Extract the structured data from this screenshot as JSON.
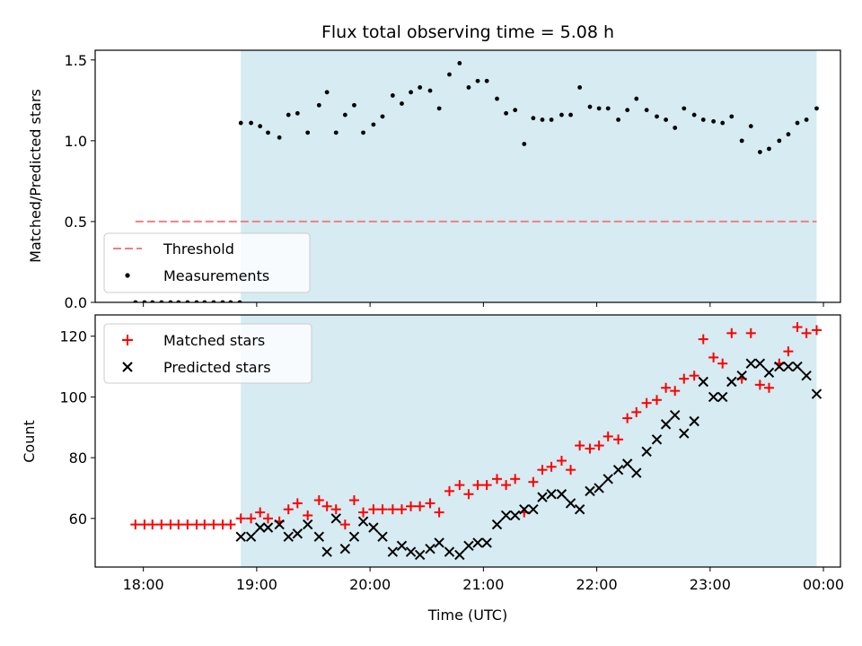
{
  "chart_data": [
    {
      "type": "scatter",
      "title": "Flux total observing time = 5.08 h",
      "xlabel": "",
      "ylabel": "Matched/Predicted stars",
      "ylim": [
        0,
        1.56
      ],
      "yticks": [
        "0.0",
        "0.5",
        "1.0",
        "1.5"
      ],
      "xlim_hours": [
        17.575,
        24.15
      ],
      "shaded_range_hours": [
        18.86,
        23.94
      ],
      "shade_color": "#add8e6",
      "legend_position": "lower-left",
      "threshold": {
        "name": "Threshold",
        "value": 0.5,
        "x_range_hours": [
          17.93,
          23.94
        ],
        "color": "#f08080"
      },
      "series": [
        {
          "name": "Measurements",
          "color": "#000000",
          "x_hours": [
            17.93,
            18.01,
            18.08,
            18.16,
            18.24,
            18.31,
            18.39,
            18.47,
            18.54,
            18.62,
            18.7,
            18.77,
            18.85,
            18.86,
            18.95,
            19.03,
            19.1,
            19.2,
            19.28,
            19.36,
            19.45,
            19.55,
            19.62,
            19.7,
            19.78,
            19.86,
            19.94,
            20.03,
            20.11,
            20.2,
            20.28,
            20.36,
            20.44,
            20.53,
            20.61,
            20.7,
            20.79,
            20.87,
            20.95,
            21.03,
            21.12,
            21.2,
            21.28,
            21.36,
            21.44,
            21.52,
            21.6,
            21.69,
            21.77,
            21.85,
            21.94,
            22.02,
            22.1,
            22.19,
            22.27,
            22.35,
            22.44,
            22.53,
            22.61,
            22.69,
            22.77,
            22.86,
            22.94,
            23.03,
            23.11,
            23.19,
            23.28,
            23.36,
            23.44,
            23.52,
            23.61,
            23.69,
            23.77,
            23.85,
            23.94
          ],
          "y": [
            0,
            0,
            0,
            0,
            0,
            0,
            0,
            0,
            0,
            0,
            0,
            0,
            0,
            1.11,
            1.11,
            1.09,
            1.05,
            1.02,
            1.16,
            1.17,
            1.05,
            1.22,
            1.3,
            1.05,
            1.16,
            1.22,
            1.05,
            1.1,
            1.15,
            1.28,
            1.23,
            1.3,
            1.33,
            1.31,
            1.2,
            1.41,
            1.48,
            1.33,
            1.37,
            1.37,
            1.26,
            1.17,
            1.19,
            0.98,
            1.14,
            1.13,
            1.13,
            1.16,
            1.16,
            1.33,
            1.21,
            1.2,
            1.2,
            1.13,
            1.19,
            1.26,
            1.19,
            1.15,
            1.13,
            1.08,
            1.2,
            1.16,
            1.13,
            1.12,
            1.11,
            1.15,
            1.0,
            1.09,
            0.93,
            0.95,
            1.0,
            1.04,
            1.11,
            1.13,
            1.2
          ]
        }
      ]
    },
    {
      "type": "scatter",
      "title": "",
      "xlabel": "Time (UTC)",
      "ylabel": "Count",
      "ylim": [
        44,
        127
      ],
      "yticks": [
        "60",
        "80",
        "100",
        "120"
      ],
      "xticks": [
        "18:00",
        "19:00",
        "20:00",
        "21:00",
        "22:00",
        "23:00",
        "00:00"
      ],
      "xlim_hours": [
        17.575,
        24.15
      ],
      "shaded_range_hours": [
        18.86,
        23.94
      ],
      "legend_position": "upper-left",
      "series": [
        {
          "name": "Matched stars",
          "color": "#ff0000",
          "marker": "plus",
          "x_hours": [
            17.93,
            18.01,
            18.08,
            18.16,
            18.24,
            18.31,
            18.39,
            18.47,
            18.54,
            18.62,
            18.7,
            18.77,
            18.86,
            18.95,
            19.03,
            19.1,
            19.2,
            19.28,
            19.36,
            19.45,
            19.55,
            19.62,
            19.7,
            19.78,
            19.86,
            19.94,
            20.03,
            20.11,
            20.2,
            20.28,
            20.36,
            20.44,
            20.53,
            20.61,
            20.7,
            20.79,
            20.87,
            20.95,
            21.03,
            21.12,
            21.2,
            21.28,
            21.36,
            21.44,
            21.52,
            21.6,
            21.69,
            21.77,
            21.85,
            21.94,
            22.02,
            22.1,
            22.19,
            22.27,
            22.35,
            22.44,
            22.53,
            22.61,
            22.69,
            22.77,
            22.86,
            22.94,
            23.03,
            23.11,
            23.19,
            23.28,
            23.36,
            23.44,
            23.52,
            23.61,
            23.69,
            23.77,
            23.85,
            23.94
          ],
          "y": [
            58,
            58,
            58,
            58,
            58,
            58,
            58,
            58,
            58,
            58,
            58,
            58,
            60,
            60,
            62,
            60,
            59,
            63,
            65,
            61,
            66,
            64,
            63,
            58,
            66,
            62,
            63,
            63,
            63,
            63,
            64,
            64,
            65,
            62,
            69,
            71,
            68,
            71,
            71,
            73,
            71,
            73,
            62,
            72,
            76,
            77,
            79,
            76,
            84,
            83,
            84,
            87,
            86,
            93,
            95,
            98,
            99,
            103,
            102,
            106,
            107,
            119,
            113,
            111,
            121,
            106,
            121,
            104,
            103,
            111,
            115,
            123,
            121,
            122
          ]
        },
        {
          "name": "Predicted stars",
          "color": "#000000",
          "marker": "x",
          "x_hours": [
            18.86,
            18.95,
            19.03,
            19.1,
            19.2,
            19.28,
            19.36,
            19.45,
            19.55,
            19.62,
            19.7,
            19.78,
            19.86,
            19.94,
            20.03,
            20.11,
            20.2,
            20.28,
            20.36,
            20.44,
            20.53,
            20.61,
            20.7,
            20.79,
            20.87,
            20.95,
            21.03,
            21.12,
            21.2,
            21.28,
            21.36,
            21.44,
            21.52,
            21.6,
            21.69,
            21.77,
            21.85,
            21.94,
            22.02,
            22.1,
            22.19,
            22.27,
            22.35,
            22.44,
            22.53,
            22.61,
            22.69,
            22.77,
            22.86,
            22.94,
            23.03,
            23.11,
            23.19,
            23.28,
            23.36,
            23.44,
            23.52,
            23.61,
            23.69,
            23.77,
            23.85,
            23.94
          ],
          "y": [
            54,
            54,
            57,
            57,
            58,
            54,
            55,
            58,
            54,
            49,
            60,
            50,
            54,
            59,
            57,
            54,
            49,
            51,
            49,
            48,
            50,
            52,
            49,
            48,
            51,
            52,
            52,
            58,
            61,
            61,
            63,
            63,
            67,
            68,
            68,
            65,
            63,
            69,
            70,
            73,
            76,
            78,
            75,
            82,
            86,
            91,
            94,
            88,
            92,
            105,
            100,
            100,
            105,
            107,
            111,
            111,
            108,
            110,
            110,
            110,
            107,
            101
          ]
        }
      ]
    }
  ]
}
